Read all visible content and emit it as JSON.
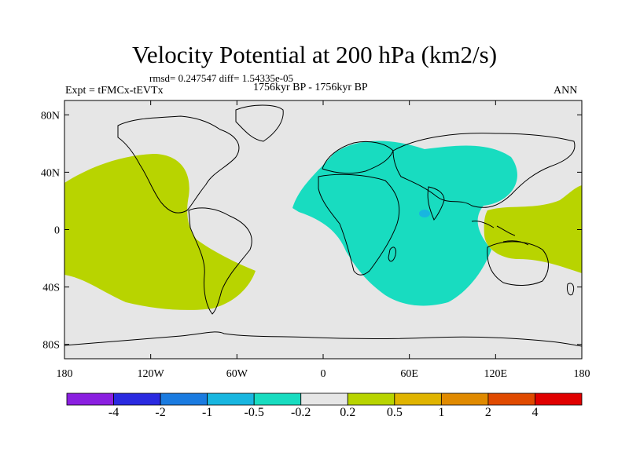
{
  "title": "Velocity Potential at 200 hPa (km2/s)",
  "stats_line": "rmsd= 0.247547 diff= 1.54335e-05",
  "experiment": "Expt = tFMCx-tEVTx",
  "period": "1756kyr BP - 1756kyr BP",
  "season": "ANN",
  "map": {
    "lon_ticks": [
      "180",
      "120W",
      "60W",
      "0",
      "60E",
      "120E",
      "180"
    ],
    "lat_ticks": [
      "80N",
      "40N",
      "0",
      "40S",
      "80S"
    ],
    "lon_range": [
      -180,
      180
    ],
    "lat_range": [
      -90,
      90
    ]
  },
  "colorbar": {
    "labels": [
      "-4",
      "-2",
      "-1",
      "-0.5",
      "-0.2",
      "0.2",
      "0.5",
      "1",
      "2",
      "4"
    ],
    "colors": [
      "#8a1fe0",
      "#2a2ae0",
      "#1a7be0",
      "#18b6e0",
      "#18dcc0",
      "#e6e6e6",
      "#b8d400",
      "#e0b400",
      "#e08a00",
      "#e04a00",
      "#e00000"
    ]
  },
  "colors": {
    "neutral": "#e6e6e6",
    "positive": "#b8d400",
    "negative": "#18dcc0",
    "negative_strong": "#18b6e0"
  }
}
